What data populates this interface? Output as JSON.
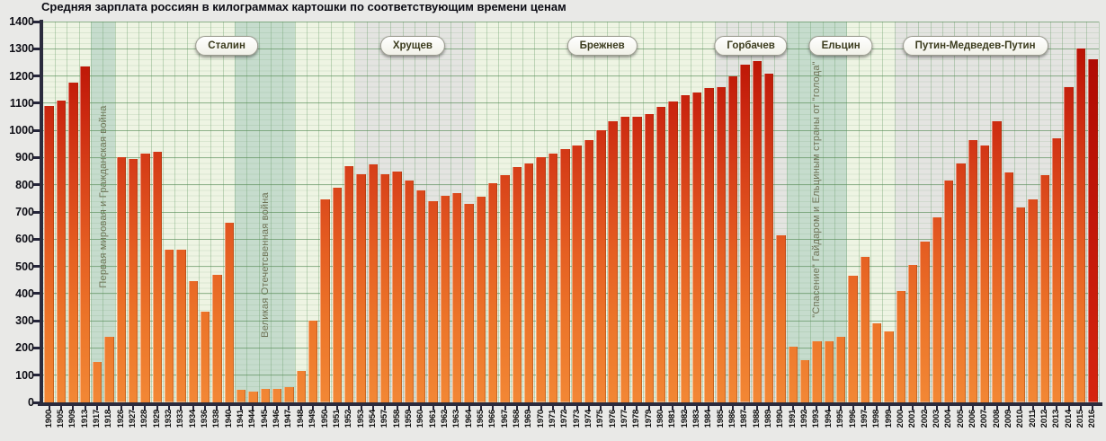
{
  "title": "Средняя зарплата россиян в килограммах картошки по соответствующим времени ценам",
  "chart_data": {
    "type": "bar",
    "title": "Средняя зарплата россиян в килограммах картошки по соответствующим времени ценам",
    "ylabel": "",
    "xlabel": "",
    "unit": "кг картошки",
    "ylim": [
      0,
      1400
    ],
    "ytick_step": 100,
    "grid": true,
    "categories": [
      "1900",
      "1905",
      "1909",
      "1913",
      "1917",
      "1918",
      "1926",
      "1927",
      "1928",
      "1929",
      "1932",
      "1933",
      "1934",
      "1936",
      "1938",
      "1940",
      "1941",
      "1944",
      "1945",
      "1946",
      "1947",
      "1948",
      "1949",
      "1950",
      "1951",
      "1952",
      "1953",
      "1954",
      "1957",
      "1958",
      "1959",
      "1960",
      "1961",
      "1962",
      "1963",
      "1964",
      "1965",
      "1966",
      "1967",
      "1968",
      "1969",
      "1970",
      "1971",
      "1972",
      "1973",
      "1974",
      "1975",
      "1976",
      "1977",
      "1978",
      "1979",
      "1980",
      "1981",
      "1982",
      "1983",
      "1984",
      "1985",
      "1986",
      "1987",
      "1988",
      "1989",
      "1990",
      "1991",
      "1992",
      "1993",
      "1994",
      "1995",
      "1996",
      "1997",
      "1998",
      "1999",
      "2000",
      "2001",
      "2002",
      "2003",
      "2004",
      "2005",
      "2006",
      "2007",
      "2008",
      "2009",
      "2010",
      "2011",
      "2012",
      "2013",
      "2014",
      "2015",
      "2016"
    ],
    "values": [
      1090,
      1110,
      1175,
      1235,
      150,
      240,
      900,
      895,
      915,
      920,
      560,
      560,
      445,
      335,
      470,
      660,
      45,
      40,
      50,
      50,
      55,
      115,
      300,
      745,
      790,
      870,
      840,
      875,
      840,
      850,
      815,
      780,
      740,
      760,
      770,
      730,
      755,
      805,
      835,
      865,
      880,
      900,
      915,
      930,
      945,
      965,
      1000,
      1035,
      1050,
      1050,
      1060,
      1085,
      1105,
      1130,
      1140,
      1155,
      1160,
      1200,
      1240,
      1255,
      1210,
      615,
      205,
      155,
      225,
      225,
      240,
      465,
      535,
      290,
      260,
      410,
      505,
      590,
      680,
      815,
      880,
      965,
      945,
      1035,
      845,
      715,
      745,
      835,
      970,
      1160,
      1300,
      1260
    ],
    "highlight_category": "2016",
    "era_badges": [
      {
        "label": "Сталин",
        "center_index": 14.8
      },
      {
        "label": "Хрущев",
        "center_index": 30.3
      },
      {
        "label": "Брежнев",
        "center_index": 46.1
      },
      {
        "label": "Горбачев",
        "center_index": 58.5
      },
      {
        "label": "Ельцин",
        "center_index": 66.0
      },
      {
        "label": "Путин-Медведев-Путин",
        "center_index": 77.2
      }
    ],
    "bands": [
      {
        "kind": "highlight",
        "start_index": 4,
        "end_index": 5,
        "label": "Первая мировая и Гражданская война",
        "label_v": 0.46
      },
      {
        "kind": "highlight",
        "start_index": 16,
        "end_index": 20,
        "label": "Великая Отечетсвенная война",
        "label_v": 0.64
      },
      {
        "kind": "shade",
        "start_index": 26,
        "end_index": 35,
        "label": "",
        "label_v": 0
      },
      {
        "kind": "shade",
        "start_index": 56,
        "end_index": 61,
        "label": "",
        "label_v": 0
      },
      {
        "kind": "highlight",
        "start_index": 62,
        "end_index": 66,
        "label": "\"Спасение\" Гайдаром и Ельциным страны от \"голода\"",
        "label_v": 0.44
      },
      {
        "kind": "shade",
        "start_index": 71,
        "end_index": 87,
        "label": "",
        "label_v": 0
      }
    ],
    "colors": {
      "plot_bg": "#eef4e3",
      "band_war": "#c6dccd",
      "band_era": "#e4e4e1",
      "bar_bottom": "#f28735",
      "bar_top": "#ad0a01",
      "highlight_bar": "#c4150a",
      "grid": "#508750",
      "axis": "#2b2b3d",
      "badge_text": "#3c3c1e",
      "band_label_text": "#6e7155",
      "title_text": "#0c0c14"
    }
  }
}
